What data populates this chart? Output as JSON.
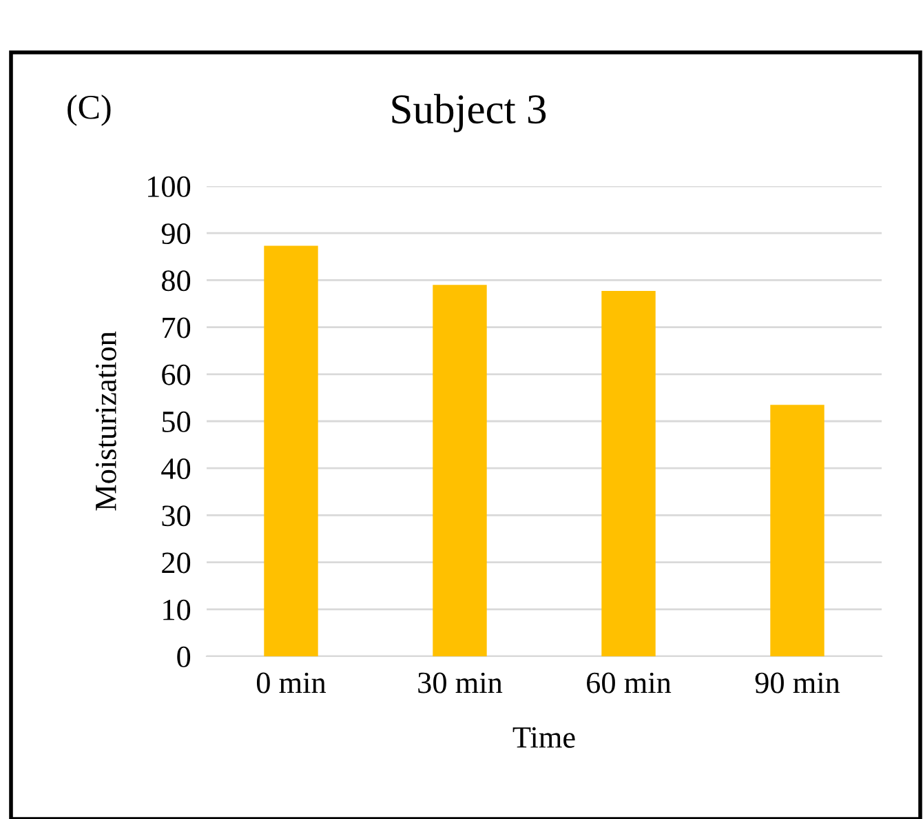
{
  "chart_data": {
    "type": "bar",
    "title": "Subject 3",
    "xlabel": "Time",
    "ylabel": "Moisturization",
    "annotations": [
      "(C)"
    ],
    "categories": [
      "0 min",
      "30 min",
      "60 min",
      "90 min"
    ],
    "values": [
      87.3,
      79.0,
      77.7,
      53.5
    ],
    "color": "#ffc000",
    "ylim": [
      0,
      100
    ],
    "yticks": [
      0,
      10,
      20,
      30,
      40,
      50,
      60,
      70,
      80,
      90,
      100
    ],
    "grid": "y",
    "legend": false
  }
}
